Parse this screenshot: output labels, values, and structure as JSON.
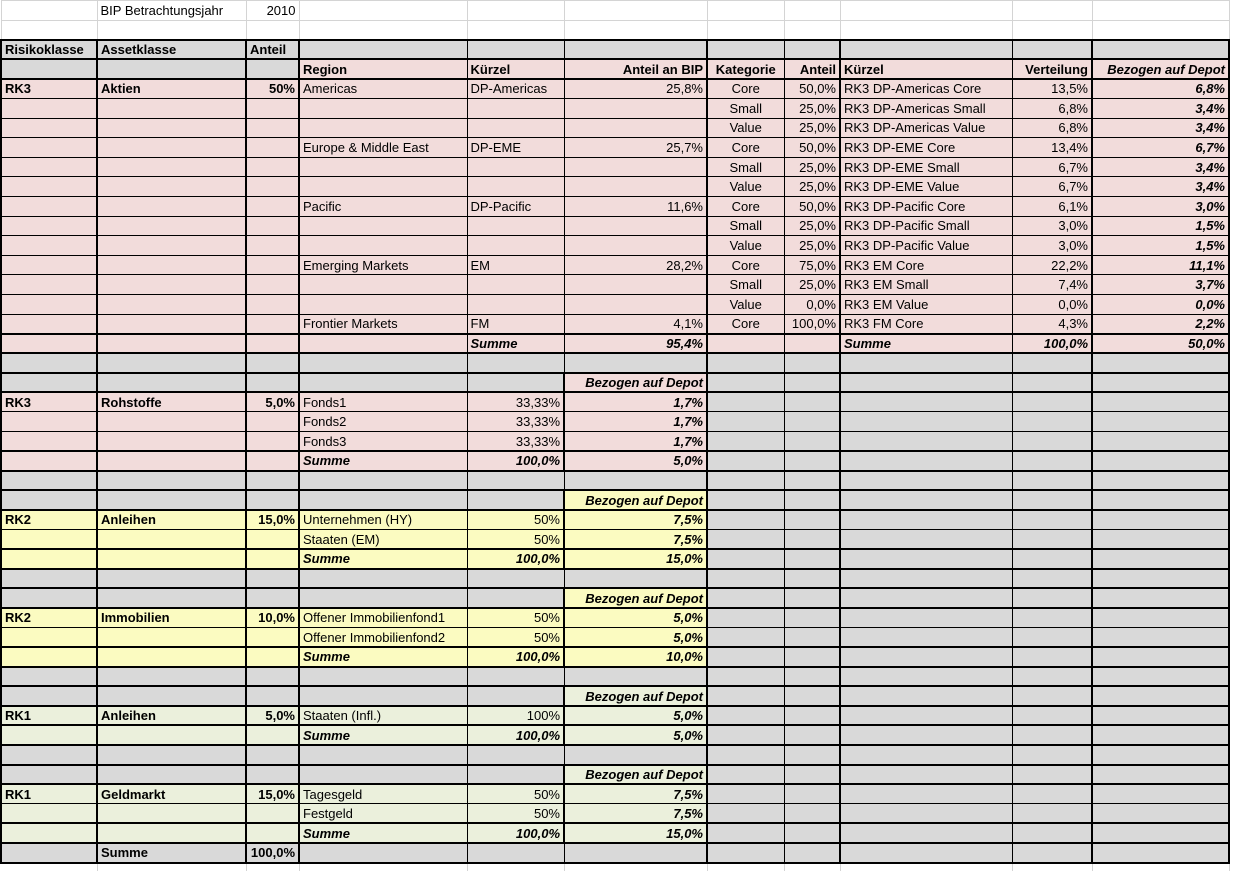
{
  "colors": {
    "rk3_pink": "#F2DCDB",
    "rk2_yellow": "#FBFBC1",
    "rk1_green": "#EBF0DC",
    "header_grey": "#D9D9D9",
    "border_black": "#000000"
  },
  "top": {
    "label": "BIP Betrachtungsjahr",
    "year": "2010"
  },
  "main_header": {
    "risikoklasse": "Risikoklasse",
    "assetklasse": "Assetklasse",
    "anteil": "Anteil"
  },
  "aktien_header": {
    "region": "Region",
    "kuerzel": "Kürzel",
    "anteil_an_bip": "Anteil an BIP",
    "kategorie": "Kategorie",
    "anteil": "Anteil",
    "kuerzel_depot": "Kürzel",
    "verteilung": "Verteilung",
    "bezogen_auf_depot": "Bezogen auf Depot"
  },
  "aktien": {
    "risikoklasse": "RK3",
    "assetklasse": "Aktien",
    "anteil": "50%",
    "color": "rk3_pink",
    "rows": [
      {
        "region": "Americas",
        "kuerzel": "DP-Americas",
        "anteil_an_bip": "25,8%",
        "kategorie": "Core",
        "anteil": "50,0%",
        "depot_kuerzel": "RK3 DP-Americas Core",
        "verteilung": "13,5%",
        "depot": "6,8%"
      },
      {
        "kategorie": "Small",
        "anteil": "25,0%",
        "depot_kuerzel": "RK3 DP-Americas Small",
        "verteilung": "6,8%",
        "depot": "3,4%"
      },
      {
        "kategorie": "Value",
        "anteil": "25,0%",
        "depot_kuerzel": "RK3 DP-Americas Value",
        "verteilung": "6,8%",
        "depot": "3,4%"
      },
      {
        "region": "Europe & Middle East",
        "kuerzel": "DP-EME",
        "anteil_an_bip": "25,7%",
        "kategorie": "Core",
        "anteil": "50,0%",
        "depot_kuerzel": "RK3 DP-EME Core",
        "verteilung": "13,4%",
        "depot": "6,7%"
      },
      {
        "kategorie": "Small",
        "anteil": "25,0%",
        "depot_kuerzel": "RK3 DP-EME Small",
        "verteilung": "6,7%",
        "depot": "3,4%"
      },
      {
        "kategorie": "Value",
        "anteil": "25,0%",
        "depot_kuerzel": "RK3 DP-EME Value",
        "verteilung": "6,7%",
        "depot": "3,4%"
      },
      {
        "region": "Pacific",
        "kuerzel": "DP-Pacific",
        "anteil_an_bip": "11,6%",
        "kategorie": "Core",
        "anteil": "50,0%",
        "depot_kuerzel": "RK3 DP-Pacific Core",
        "verteilung": "6,1%",
        "depot": "3,0%"
      },
      {
        "kategorie": "Small",
        "anteil": "25,0%",
        "depot_kuerzel": "RK3 DP-Pacific Small",
        "verteilung": "3,0%",
        "depot": "1,5%"
      },
      {
        "kategorie": "Value",
        "anteil": "25,0%",
        "depot_kuerzel": "RK3 DP-Pacific Value",
        "verteilung": "3,0%",
        "depot": "1,5%"
      },
      {
        "region": "Emerging Markets",
        "kuerzel": "EM",
        "anteil_an_bip": "28,2%",
        "kategorie": "Core",
        "anteil": "75,0%",
        "depot_kuerzel": "RK3 EM Core",
        "verteilung": "22,2%",
        "depot": "11,1%"
      },
      {
        "kategorie": "Small",
        "anteil": "25,0%",
        "depot_kuerzel": "RK3 EM Small",
        "verteilung": "7,4%",
        "depot": "3,7%"
      },
      {
        "kategorie": "Value",
        "anteil": "0,0%",
        "depot_kuerzel": "RK3 EM Value",
        "verteilung": "0,0%",
        "depot": "0,0%"
      },
      {
        "region": "Frontier Markets",
        "kuerzel": "FM",
        "anteil_an_bip": "4,1%",
        "kategorie": "Core",
        "anteil": "100,0%",
        "depot_kuerzel": "RK3 FM Core",
        "verteilung": "4,3%",
        "depot": "2,2%"
      }
    ],
    "summe": {
      "label": "Summe",
      "anteil_an_bip": "95,4%",
      "label_right": "Summe",
      "verteilung": "100,0%",
      "depot": "50,0%"
    }
  },
  "sections": [
    {
      "risikoklasse": "RK3",
      "assetklasse": "Rohstoffe",
      "anteil": "5,0%",
      "color": "rk3_pink",
      "depot_header": "Bezogen auf Depot",
      "rows": [
        {
          "name": "Fonds1",
          "anteil": "33,33%",
          "depot": "1,7%"
        },
        {
          "name": "Fonds2",
          "anteil": "33,33%",
          "depot": "1,7%"
        },
        {
          "name": "Fonds3",
          "anteil": "33,33%",
          "depot": "1,7%"
        }
      ],
      "summe": {
        "label": "Summe",
        "anteil": "100,0%",
        "depot": "5,0%"
      }
    },
    {
      "risikoklasse": "RK2",
      "assetklasse": "Anleihen",
      "anteil": "15,0%",
      "color": "rk2_yellow",
      "depot_header": "Bezogen auf Depot",
      "rows": [
        {
          "name": "Unternehmen (HY)",
          "anteil": "50%",
          "depot": "7,5%"
        },
        {
          "name": "Staaten (EM)",
          "anteil": "50%",
          "depot": "7,5%"
        }
      ],
      "summe": {
        "label": "Summe",
        "anteil": "100,0%",
        "depot": "15,0%"
      }
    },
    {
      "risikoklasse": "RK2",
      "assetklasse": "Immobilien",
      "anteil": "10,0%",
      "color": "rk2_yellow",
      "depot_header": "Bezogen auf Depot",
      "rows": [
        {
          "name": "Offener Immobilienfond1",
          "anteil": "50%",
          "depot": "5,0%"
        },
        {
          "name": "Offener Immobilienfond2",
          "anteil": "50%",
          "depot": "5,0%"
        }
      ],
      "summe": {
        "label": "Summe",
        "anteil": "100,0%",
        "depot": "10,0%"
      }
    },
    {
      "risikoklasse": "RK1",
      "assetklasse": "Anleihen",
      "anteil": "5,0%",
      "color": "rk1_green",
      "depot_header": "Bezogen auf Depot",
      "rows": [
        {
          "name": "Staaten (Infl.)",
          "anteil": "100%",
          "depot": "5,0%"
        }
      ],
      "summe": {
        "label": "Summe",
        "anteil": "100,0%",
        "depot": "5,0%"
      }
    },
    {
      "risikoklasse": "RK1",
      "assetklasse": "Geldmarkt",
      "anteil": "15,0%",
      "color": "rk1_green",
      "depot_header": "Bezogen auf Depot",
      "rows": [
        {
          "name": "Tagesgeld",
          "anteil": "50%",
          "depot": "7,5%"
        },
        {
          "name": "Festgeld",
          "anteil": "50%",
          "depot": "7,5%"
        }
      ],
      "summe": {
        "label": "Summe",
        "anteil": "100,0%",
        "depot": "15,0%"
      }
    }
  ],
  "total": {
    "label": "Summe",
    "value": "100,0%"
  }
}
